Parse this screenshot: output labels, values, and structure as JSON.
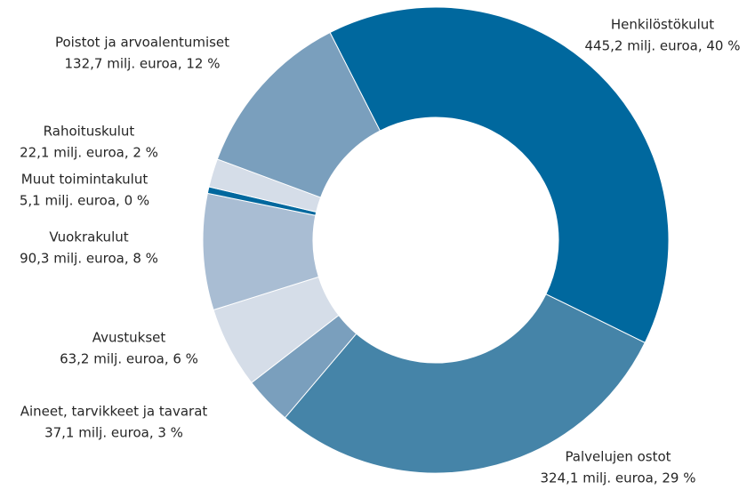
{
  "chart_data": {
    "type": "donut",
    "categories": [
      "Henkilöstökulut",
      "Palvelujen ostot",
      "Aineet, tarvikkeet ja tavarat",
      "Avustukset",
      "Vuokrakulut",
      "Muut toimintakulut",
      "Rahoituskulut",
      "Poistot ja arvoalentumiset"
    ],
    "values": [
      445.2,
      324.1,
      37.1,
      63.2,
      90.3,
      5.1,
      22.1,
      132.7
    ],
    "value_labels": [
      "445,2 milj. euroa, 40 %",
      "324,1 milj. euroa, 29 %",
      "37,1 milj. euroa, 3 %",
      "63,2 milj. euroa, 6 %",
      "90,3 milj. euroa, 8 %",
      "5,1 milj. euroa, 0 %",
      "22,1 milj. euroa, 2 %",
      "132,7 milj. euroa, 12 %"
    ],
    "colors": [
      "#00689e",
      "#4584a8",
      "#7a9fbd",
      "#d5dde8",
      "#a9bdd3",
      "#00689e",
      "#d5dde8",
      "#7a9fbd"
    ]
  }
}
